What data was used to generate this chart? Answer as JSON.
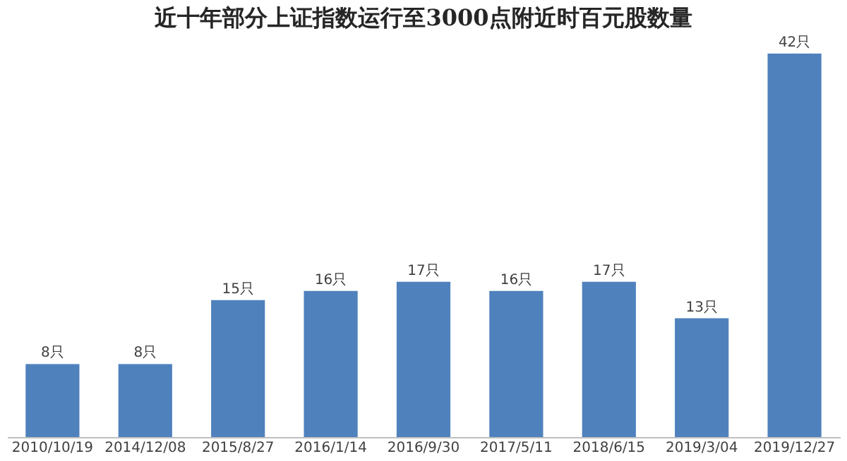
{
  "chart_data": {
    "type": "bar",
    "title": "近十年部分上证指数运行至3000点附近时百元股数量",
    "categories": [
      "2010/10/19",
      "2014/12/08",
      "2015/8/27",
      "2016/1/14",
      "2016/9/30",
      "2017/5/11",
      "2018/6/15",
      "2019/3/04",
      "2019/12/27"
    ],
    "values": [
      8,
      8,
      15,
      16,
      17,
      16,
      17,
      13,
      42
    ],
    "value_labels": [
      "8只",
      "8只",
      "15只",
      "16只",
      "17只",
      "16只",
      "17只",
      "13只",
      "42只"
    ],
    "color": "#4f81bd"
  }
}
